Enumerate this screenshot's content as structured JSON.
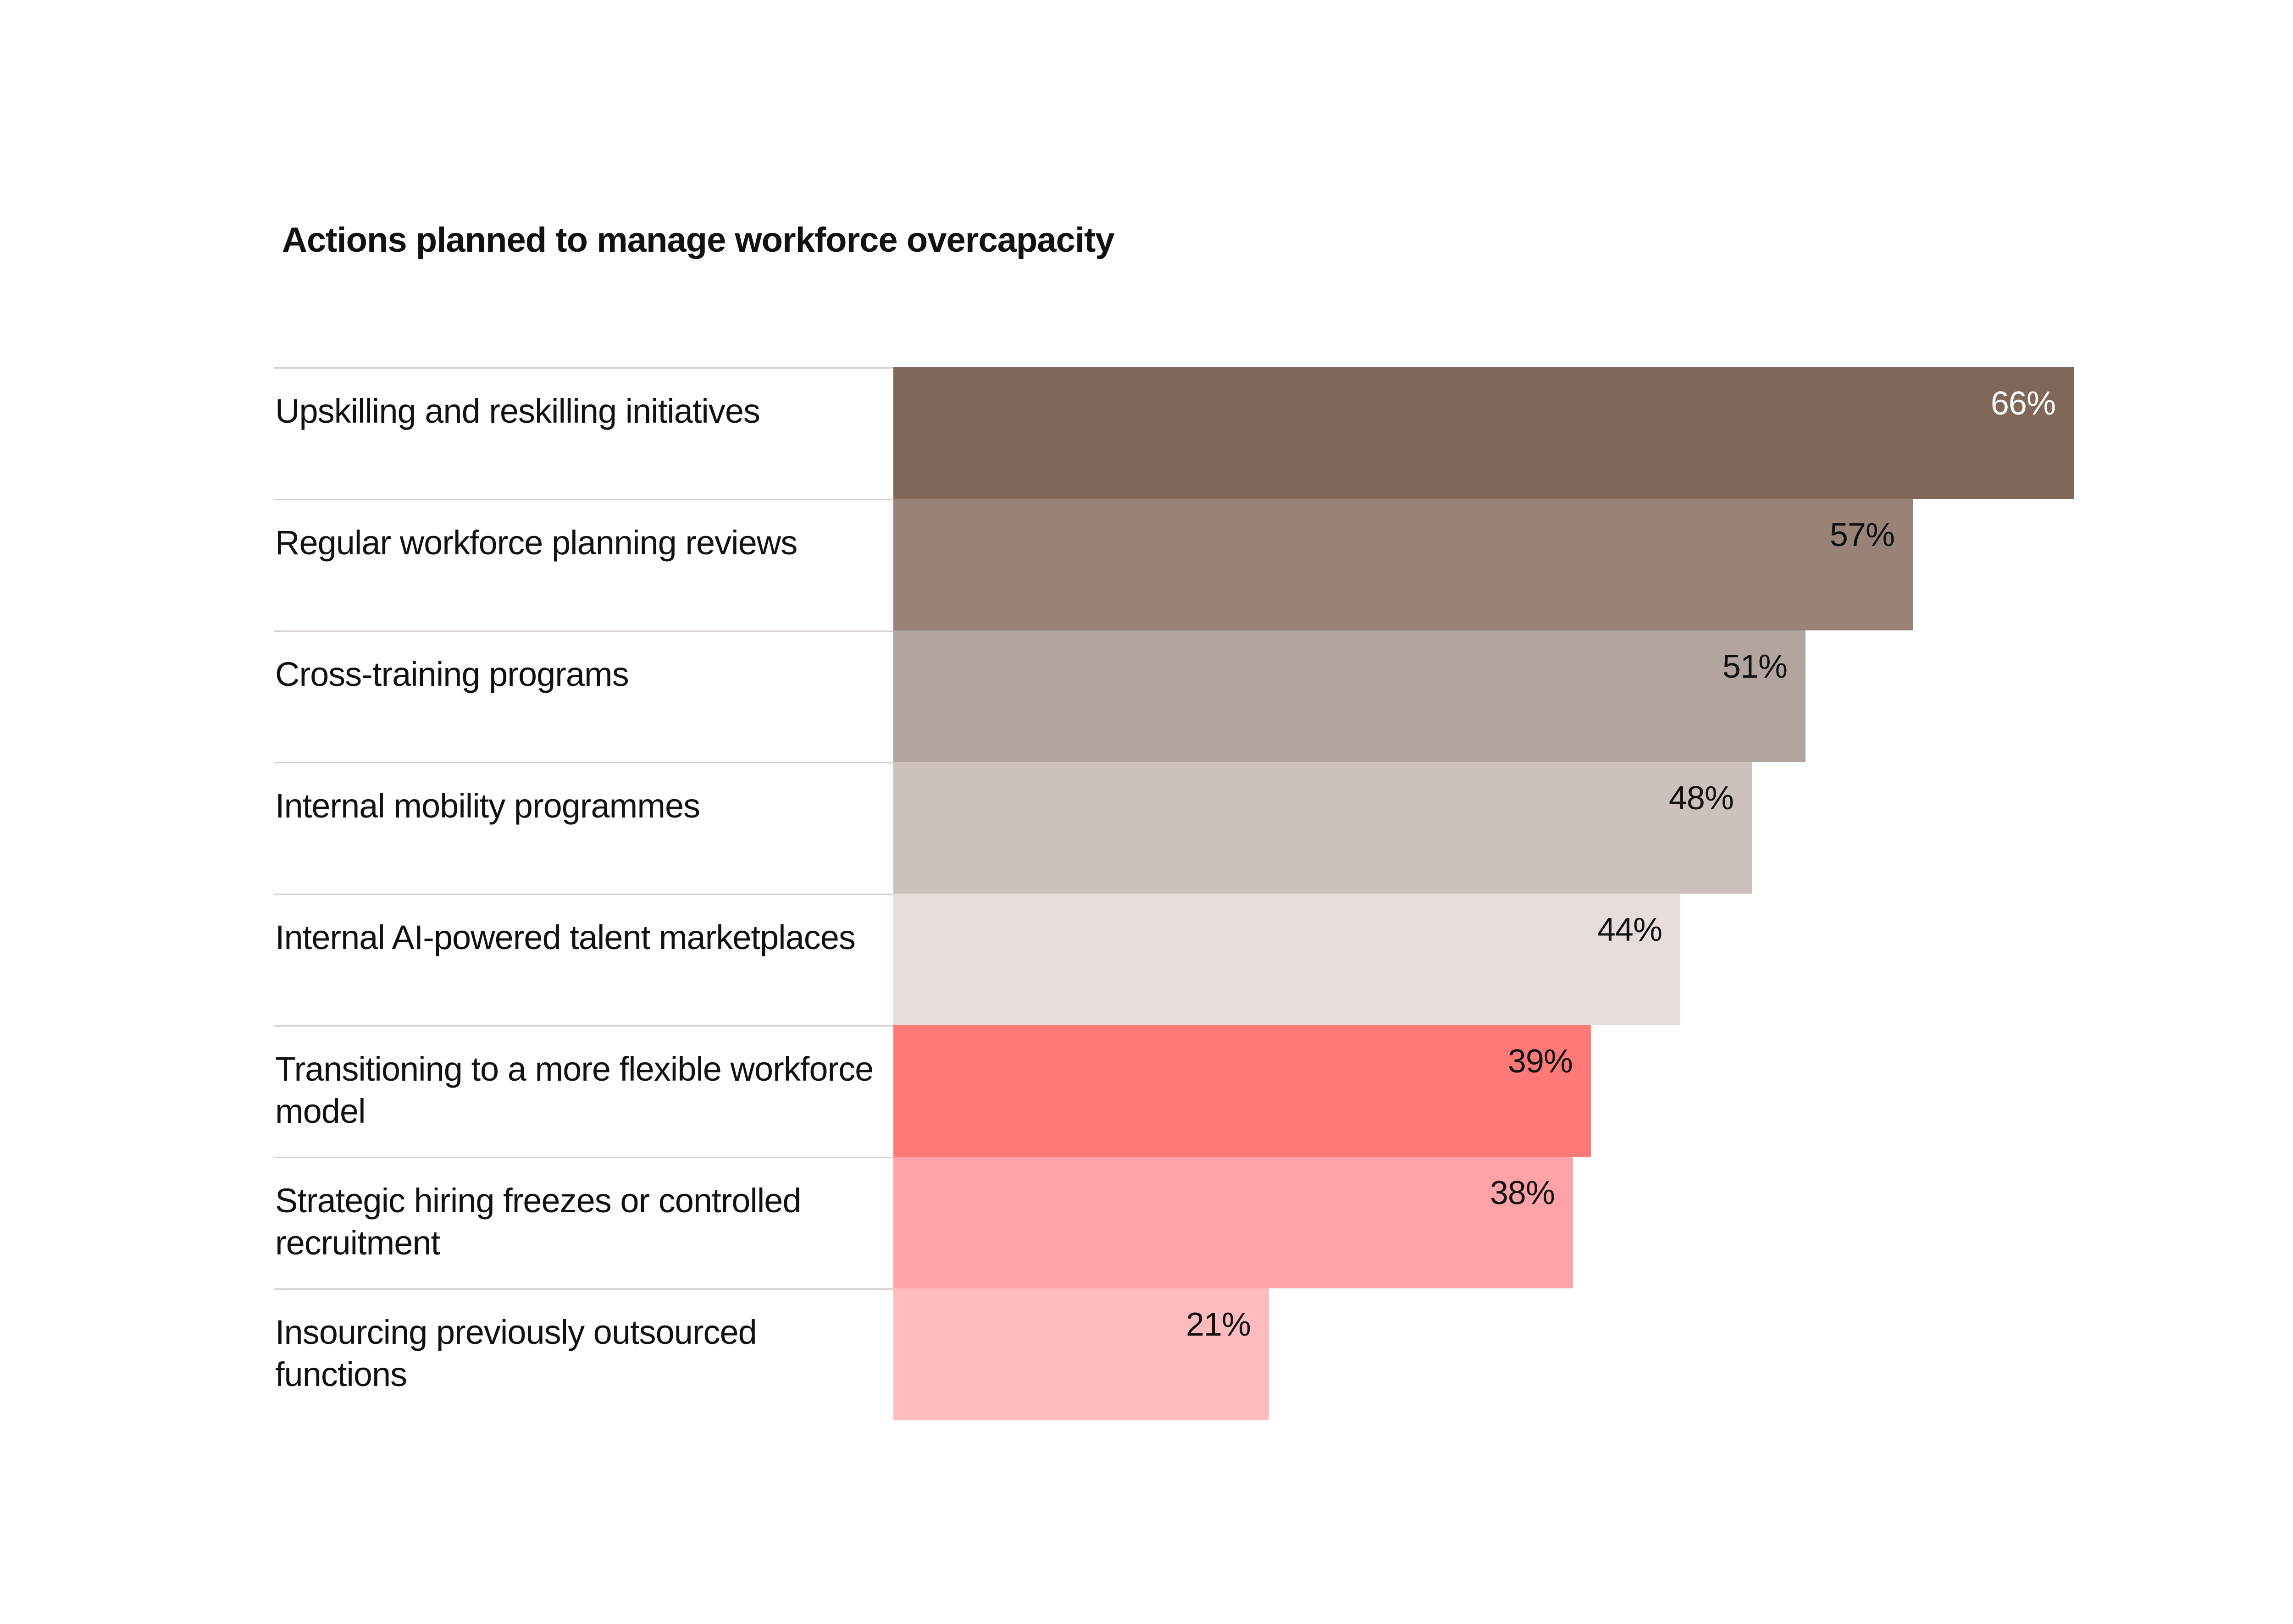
{
  "chart_data": {
    "type": "bar",
    "orientation": "horizontal",
    "title": "Actions planned to manage workforce overcapacity",
    "categories": [
      "Upskilling and reskilling initiatives",
      "Regular workforce planning reviews",
      "Cross-training programs",
      "Internal mobility programmes",
      "Internal AI-powered talent marketplaces",
      "Transitioning to a more flexible workforce model",
      "Strategic hiring freezes or controlled recruitment",
      "Insourcing previously outsourced functions"
    ],
    "values": [
      66,
      57,
      51,
      48,
      44,
      39,
      38,
      21
    ],
    "value_labels": [
      "66%",
      "57%",
      "51%",
      "48%",
      "44%",
      "39%",
      "38%",
      "21%"
    ],
    "colors": [
      "#806759",
      "#998379",
      "#b2a49f",
      "#ccc1bd",
      "#e7dedc",
      "#ff7979",
      "#ffa3a7",
      "#ffbcbe"
    ],
    "label_colors": [
      "#ffffff",
      "#111111",
      "#111111",
      "#111111",
      "#111111",
      "#111111",
      "#111111",
      "#111111"
    ],
    "xlim": [
      0,
      66
    ],
    "grid": false,
    "legend": "none"
  }
}
